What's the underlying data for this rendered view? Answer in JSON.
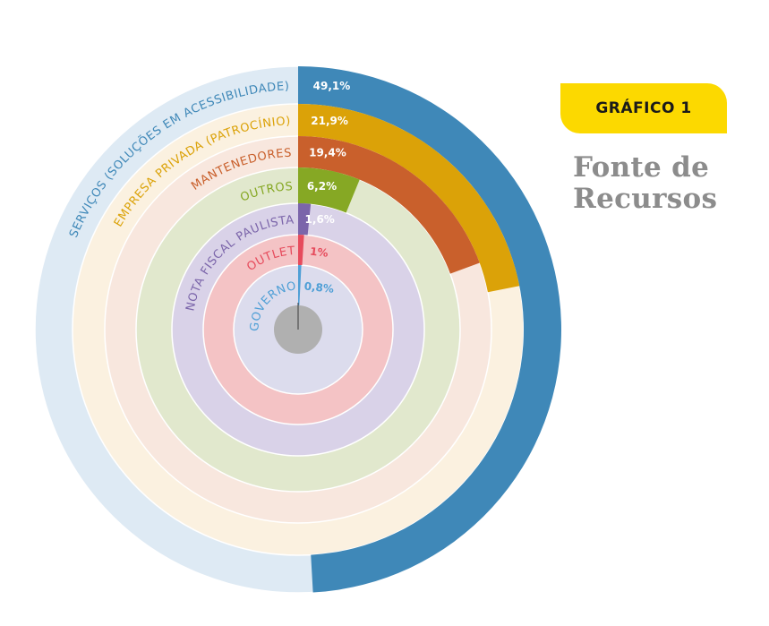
{
  "badge": {
    "label": "GRÁFICO 1"
  },
  "heading": {
    "line1": "Fonte de",
    "line2": "Recursos"
  },
  "chart_data": {
    "type": "radial-bar",
    "series": [
      {
        "name": "SERVIÇOS (SOLUÇÕES EM ACESSIBILIDADE)",
        "value": 49.1,
        "label": "49,1%",
        "color": "#3f88b8",
        "track": "#deeaf4",
        "label_color": "#3f88b8"
      },
      {
        "name": "EMPRESA PRIVADA (PATROCÍNIO)",
        "value": 21.9,
        "label": "21,9%",
        "color": "#dba208",
        "track": "#fbf1e0",
        "label_color": "#dba208"
      },
      {
        "name": "MANTENEDORES",
        "value": 19.4,
        "label": "19,4%",
        "color": "#c9602c",
        "track": "#f8e7de",
        "label_color": "#c9602c"
      },
      {
        "name": "OUTROS",
        "value": 6.2,
        "label": "6,2%",
        "color": "#86a824",
        "track": "#e1e8cd",
        "label_color": "#86a824"
      },
      {
        "name": "NOTA FISCAL PAULISTA",
        "value": 1.6,
        "label": "1,6%",
        "color": "#7b65aa",
        "track": "#d9d2e8",
        "label_color": "#7b65aa"
      },
      {
        "name": "OUTLET",
        "value": 1.0,
        "label": "1%",
        "color": "#e64b5c",
        "track": "#f4c3c5",
        "label_color": "#e64b5c"
      },
      {
        "name": "GOVERNO",
        "value": 0.8,
        "label": "0,8%",
        "color": "#4f9fd6",
        "track": "#dcdced",
        "label_color": "#4f9fd6"
      }
    ],
    "max_value": 100,
    "hub_color": "#b0b0b0"
  }
}
